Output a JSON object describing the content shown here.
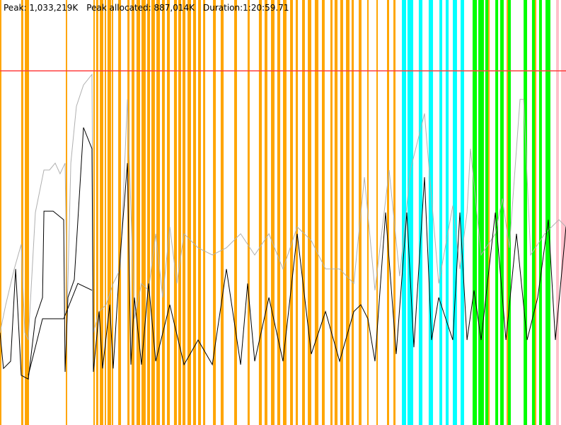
{
  "header": {
    "peak": "Peak: 1,033,219K",
    "peak_allocated": "Peak allocated: 887,014K",
    "duration": "Duration:1:20:59.71"
  },
  "chart_data": {
    "type": "line",
    "title": "",
    "xlabel": "",
    "ylabel": "",
    "x_units": "seconds",
    "y_units": "K",
    "xlim": [
      0,
      4860
    ],
    "ylim": [
      0,
      1240000
    ],
    "grid": false,
    "peak_line": {
      "value": 1033219,
      "color": "#ff4040"
    },
    "band_colors": {
      "orange": "#ffa500",
      "cyan": "#00ffff",
      "green": "#00ff00",
      "pink": "#ffc0cb"
    },
    "bands": {
      "orange": [
        [
          0,
          12
        ],
        [
          182,
          200
        ],
        [
          213,
          249
        ],
        [
          565,
          577
        ],
        [
          802,
          814
        ],
        [
          826,
          844
        ],
        [
          857,
          887
        ],
        [
          899,
          911
        ],
        [
          923,
          954
        ],
        [
          960,
          972
        ],
        [
          1015,
          1039
        ],
        [
          1094,
          1112
        ],
        [
          1130,
          1154
        ],
        [
          1172,
          1203
        ],
        [
          1215,
          1251
        ],
        [
          1264,
          1288
        ],
        [
          1300,
          1330
        ],
        [
          1343,
          1373
        ],
        [
          1391,
          1415
        ],
        [
          1434,
          1458
        ],
        [
          1494,
          1519
        ],
        [
          1531,
          1555
        ],
        [
          1567,
          1592
        ],
        [
          1610,
          1640
        ],
        [
          1658,
          1683
        ],
        [
          1701,
          1725
        ],
        [
          1744,
          1762
        ],
        [
          1829,
          1853
        ],
        [
          1895,
          1920
        ],
        [
          2011,
          2035
        ],
        [
          2126,
          2144
        ],
        [
          2223,
          2248
        ],
        [
          2272,
          2296
        ],
        [
          2327,
          2357
        ],
        [
          2381,
          2406
        ],
        [
          2430,
          2460
        ],
        [
          2491,
          2515
        ],
        [
          2539,
          2558
        ],
        [
          2594,
          2618
        ],
        [
          2643,
          2673
        ],
        [
          2703,
          2734
        ],
        [
          2764,
          2788
        ],
        [
          2837,
          2855
        ],
        [
          2873,
          2898
        ],
        [
          2922,
          2946
        ],
        [
          2971,
          3001
        ],
        [
          3019,
          3038
        ],
        [
          3080,
          3104
        ],
        [
          3153,
          3165
        ],
        [
          3232,
          3244
        ],
        [
          3323,
          3341
        ],
        [
          3378,
          3396
        ],
        [
          4192,
          4204
        ],
        [
          4350,
          4362
        ],
        [
          4593,
          4605
        ]
      ],
      "cyan": [
        [
          3451,
          3487
        ],
        [
          3499,
          3548
        ],
        [
          3596,
          3627
        ],
        [
          3681,
          3718
        ],
        [
          3773,
          3797
        ],
        [
          3827,
          3852
        ],
        [
          3888,
          3924
        ],
        [
          3955,
          3985
        ]
      ],
      "green": [
        [
          4058,
          4095
        ],
        [
          4107,
          4155
        ],
        [
          4167,
          4192
        ],
        [
          4253,
          4277
        ],
        [
          4295,
          4325
        ],
        [
          4362,
          4386
        ],
        [
          4496,
          4526
        ],
        [
          4568,
          4593
        ],
        [
          4629,
          4653
        ],
        [
          4684,
          4726
        ]
      ],
      "pink": [
        [
          4775,
          4799
        ],
        [
          4817,
          4860
        ]
      ]
    },
    "series": [
      {
        "color": "#b0b0b0",
        "points": [
          [
            0,
            269000
          ],
          [
            49,
            351000
          ],
          [
            122,
            455000
          ],
          [
            182,
            527000
          ],
          [
            213,
            269000
          ],
          [
            243,
            248000
          ],
          [
            304,
            620000
          ],
          [
            377,
            744000
          ],
          [
            425,
            744000
          ],
          [
            474,
            764000
          ],
          [
            516,
            733000
          ],
          [
            559,
            764000
          ],
          [
            577,
            331000
          ],
          [
            608,
            764000
          ],
          [
            656,
            930000
          ],
          [
            717,
            992000
          ],
          [
            790,
            1023000
          ],
          [
            802,
            269000
          ],
          [
            851,
            331000
          ],
          [
            911,
            351000
          ],
          [
            972,
            413000
          ],
          [
            1033,
            455000
          ],
          [
            1094,
            950000
          ],
          [
            1154,
            310000
          ],
          [
            1215,
            413000
          ],
          [
            1276,
            393000
          ],
          [
            1337,
            558000
          ],
          [
            1397,
            372000
          ],
          [
            1458,
            578000
          ],
          [
            1519,
            413000
          ],
          [
            1580,
            558000
          ],
          [
            1701,
            517000
          ],
          [
            1823,
            496000
          ],
          [
            1944,
            517000
          ],
          [
            2066,
            558000
          ],
          [
            2187,
            496000
          ],
          [
            2309,
            558000
          ],
          [
            2430,
            455000
          ],
          [
            2552,
            578000
          ],
          [
            2673,
            538000
          ],
          [
            2795,
            455000
          ],
          [
            2916,
            455000
          ],
          [
            3038,
            413000
          ],
          [
            3129,
            723000
          ],
          [
            3220,
            393000
          ],
          [
            3341,
            744000
          ],
          [
            3432,
            434000
          ],
          [
            3524,
            744000
          ],
          [
            3645,
            909000
          ],
          [
            3767,
            413000
          ],
          [
            3888,
            640000
          ],
          [
            3949,
            455000
          ],
          [
            4010,
            620000
          ],
          [
            4040,
            806000
          ],
          [
            4131,
            496000
          ],
          [
            4253,
            558000
          ],
          [
            4313,
            661000
          ],
          [
            4374,
            517000
          ],
          [
            4465,
            950000
          ],
          [
            4496,
            950000
          ],
          [
            4556,
            496000
          ],
          [
            4678,
            558000
          ],
          [
            4799,
            599000
          ],
          [
            4860,
            578000
          ]
        ]
      },
      {
        "color": "#000000",
        "points": [
          [
            0,
            269000
          ],
          [
            30,
            165000
          ],
          [
            91,
            186000
          ],
          [
            134,
            455000
          ],
          [
            182,
            145000
          ],
          [
            243,
            134000
          ],
          [
            304,
            310000
          ],
          [
            365,
            372000
          ],
          [
            377,
            624000
          ],
          [
            456,
            624000
          ],
          [
            547,
            599000
          ],
          [
            559,
            155000
          ],
          [
            583,
            372000
          ],
          [
            638,
            424000
          ],
          [
            717,
            868000
          ],
          [
            790,
            806000
          ],
          [
            802,
            155000
          ],
          [
            851,
            331000
          ],
          [
            881,
            165000
          ],
          [
            942,
            351000
          ],
          [
            972,
            165000
          ],
          [
            1033,
            496000
          ],
          [
            1094,
            764000
          ],
          [
            1124,
            176000
          ],
          [
            1154,
            372000
          ],
          [
            1215,
            176000
          ],
          [
            1276,
            413000
          ],
          [
            1337,
            186000
          ],
          [
            1458,
            351000
          ],
          [
            1580,
            176000
          ],
          [
            1701,
            248000
          ],
          [
            1823,
            176000
          ],
          [
            1944,
            455000
          ],
          [
            2066,
            176000
          ],
          [
            2126,
            413000
          ],
          [
            2187,
            186000
          ],
          [
            2309,
            372000
          ],
          [
            2430,
            186000
          ],
          [
            2552,
            558000
          ],
          [
            2673,
            207000
          ],
          [
            2795,
            331000
          ],
          [
            2916,
            186000
          ],
          [
            3038,
            331000
          ],
          [
            3098,
            351000
          ],
          [
            3159,
            310000
          ],
          [
            3220,
            186000
          ],
          [
            3311,
            620000
          ],
          [
            3402,
            207000
          ],
          [
            3493,
            620000
          ],
          [
            3554,
            227000
          ],
          [
            3645,
            723000
          ],
          [
            3706,
            248000
          ],
          [
            3767,
            372000
          ],
          [
            3888,
            248000
          ],
          [
            3949,
            620000
          ],
          [
            4010,
            248000
          ],
          [
            4070,
            393000
          ],
          [
            4131,
            248000
          ],
          [
            4253,
            620000
          ],
          [
            4344,
            248000
          ],
          [
            4435,
            558000
          ],
          [
            4526,
            248000
          ],
          [
            4617,
            372000
          ],
          [
            4708,
            599000
          ],
          [
            4769,
            248000
          ],
          [
            4860,
            578000
          ]
        ]
      },
      {
        "color": "#000000",
        "points": [
          [
            243,
            145000
          ],
          [
            365,
            310000
          ],
          [
            547,
            310000
          ],
          [
            668,
            413000
          ],
          [
            790,
            393000
          ]
        ]
      }
    ]
  }
}
